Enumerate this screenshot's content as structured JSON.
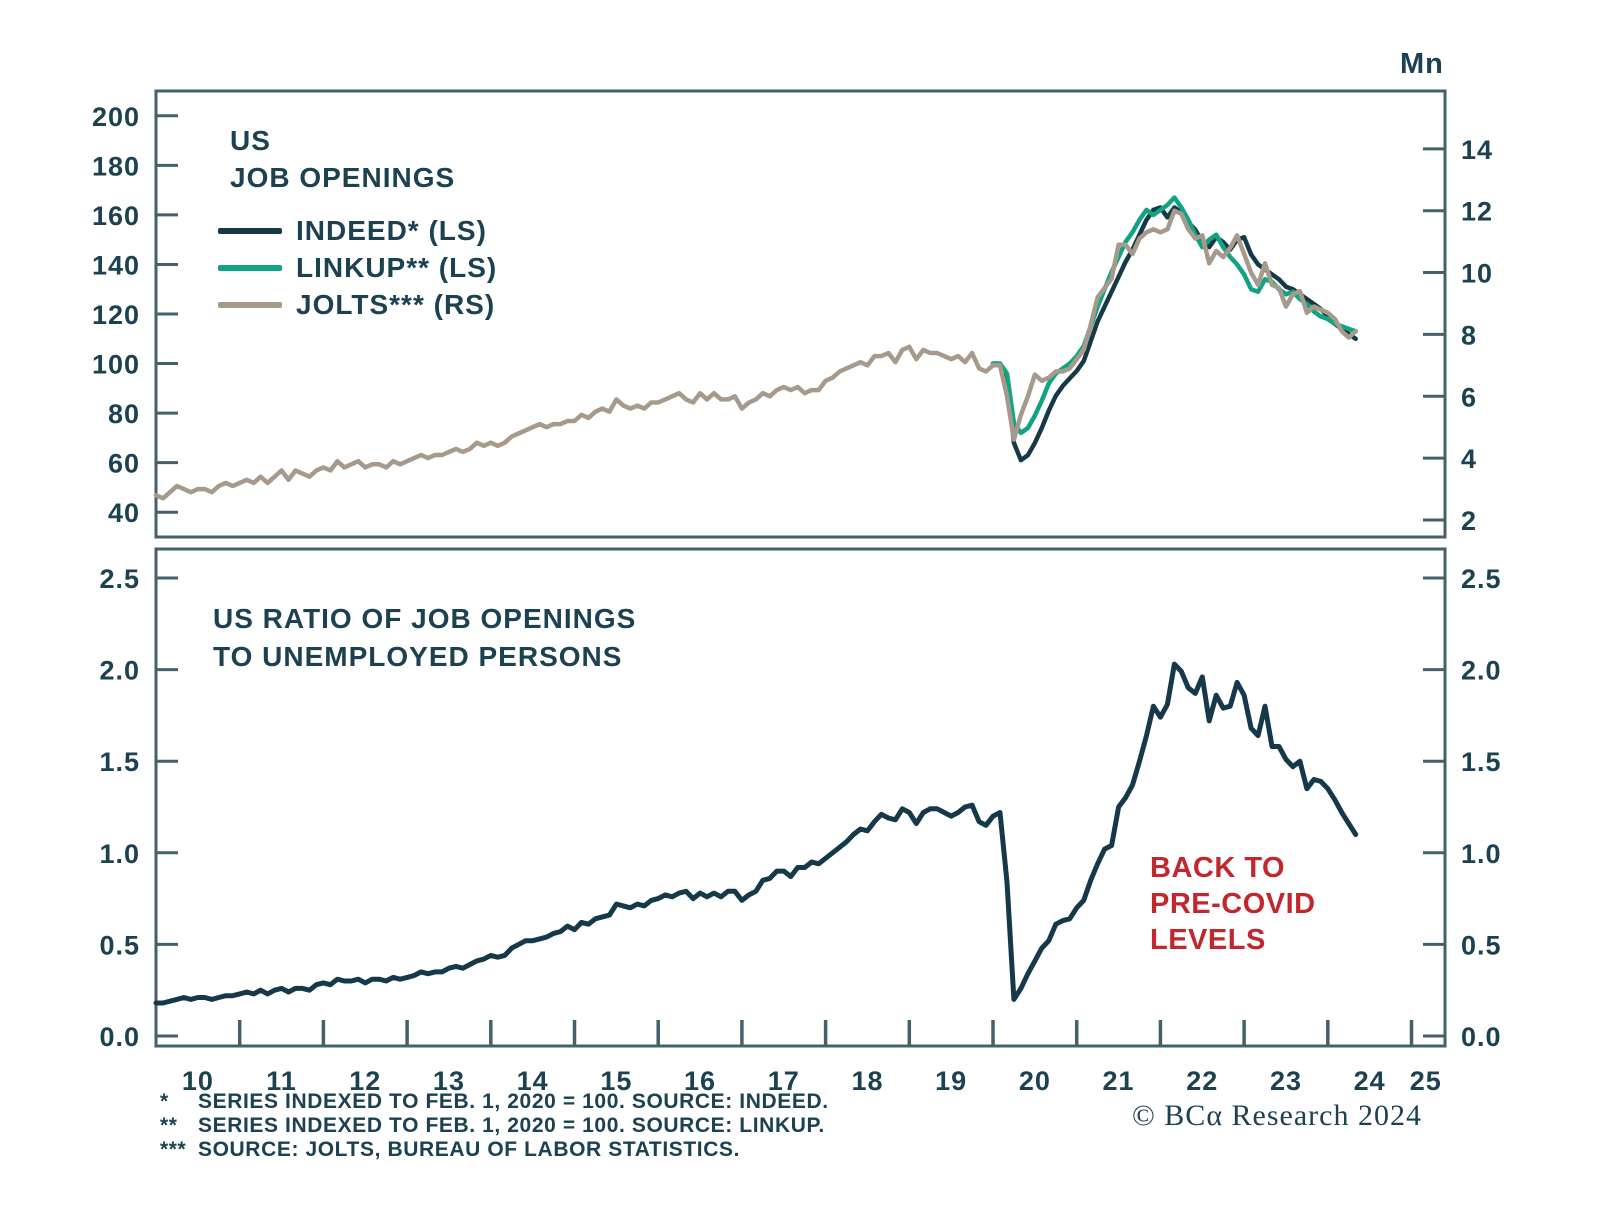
{
  "colors": {
    "text": "#1c4150",
    "axis": "#44606b",
    "line_dark": "#16394a",
    "line_green": "#10a482",
    "line_tan": "#a79a8c",
    "red": "#c2272d",
    "background": "#ffffff"
  },
  "footnotes": [
    {
      "marker": "*",
      "text": "SERIES INDEXED TO FEB. 1, 2020 = 100. SOURCE: INDEED."
    },
    {
      "marker": "**",
      "text": "SERIES INDEXED TO FEB. 1, 2020 = 100. SOURCE: LINKUP."
    },
    {
      "marker": "***",
      "text": "SOURCE: JOLTS, BUREAU OF LABOR STATISTICS."
    }
  ],
  "copyright": "© BCα Research 2024",
  "chart_data": [
    {
      "type": "line",
      "title_lines": [
        "US",
        "JOB OPENINGS"
      ],
      "legend_position": "top-left",
      "grid": false,
      "x_range": [
        2010.0,
        2025.4
      ],
      "left_axis": {
        "tick_values": [
          200,
          180,
          160,
          140,
          120,
          100,
          80,
          60,
          40
        ],
        "tick_labels": [
          "200",
          "180",
          "160",
          "140",
          "120",
          "100",
          "80",
          "60",
          "40"
        ],
        "range": [
          30,
          210
        ]
      },
      "right_axis": {
        "unit": "Mn",
        "tick_values": [
          14,
          12,
          10,
          8,
          6,
          4,
          2
        ],
        "tick_labels": [
          "14",
          "12",
          "10",
          "8",
          "6",
          "4",
          "2"
        ],
        "range": [
          1.45,
          15.87
        ]
      },
      "series": [
        {
          "id": "indeed",
          "name": "INDEED* (LS)",
          "axis": "left",
          "color_key": "line_dark",
          "stroke_width": 4.5,
          "start_year": 2020,
          "start_month": 1,
          "freq": "monthly",
          "values": [
            100,
            100,
            95,
            68,
            61,
            63,
            68,
            74,
            81,
            87,
            91,
            94,
            97,
            101,
            109,
            117,
            123,
            129,
            135,
            141,
            146,
            152,
            158,
            162,
            163,
            159,
            163,
            161,
            157,
            154,
            149,
            147,
            151,
            149,
            146,
            150,
            151,
            144,
            140,
            138,
            136,
            134,
            131,
            130,
            128,
            126,
            124,
            122,
            119,
            116,
            114,
            112,
            110
          ]
        },
        {
          "id": "linkup",
          "name": "LINKUP** (LS)",
          "axis": "left",
          "color_key": "line_green",
          "stroke_width": 4.5,
          "start_year": 2020,
          "start_month": 1,
          "freq": "monthly",
          "values": [
            100,
            100,
            96,
            76,
            72,
            74,
            79,
            85,
            92,
            96,
            98,
            100,
            103,
            107,
            115,
            123,
            130,
            137,
            143,
            149,
            153,
            158,
            162,
            160,
            162,
            164,
            167,
            163,
            158,
            152,
            147,
            150,
            152,
            147,
            143,
            140,
            136,
            130,
            129,
            134,
            133,
            130,
            128,
            129,
            126,
            124,
            121,
            119,
            118,
            116,
            115,
            114,
            113
          ]
        },
        {
          "id": "jolts",
          "name": "JOLTS*** (RS)",
          "axis": "right",
          "color_key": "line_tan",
          "stroke_width": 4.5,
          "start_year": 2010,
          "start_month": 1,
          "freq": "monthly",
          "values": [
            2.8,
            2.7,
            2.9,
            3.1,
            3.0,
            2.9,
            3.0,
            3.0,
            2.9,
            3.1,
            3.2,
            3.1,
            3.2,
            3.3,
            3.2,
            3.4,
            3.2,
            3.4,
            3.6,
            3.3,
            3.6,
            3.5,
            3.4,
            3.6,
            3.7,
            3.6,
            3.9,
            3.7,
            3.8,
            3.9,
            3.7,
            3.8,
            3.8,
            3.7,
            3.9,
            3.8,
            3.9,
            4.0,
            4.1,
            4.0,
            4.1,
            4.1,
            4.2,
            4.3,
            4.2,
            4.3,
            4.5,
            4.4,
            4.5,
            4.4,
            4.5,
            4.7,
            4.8,
            4.9,
            5.0,
            5.1,
            5.0,
            5.1,
            5.1,
            5.2,
            5.2,
            5.4,
            5.3,
            5.5,
            5.6,
            5.5,
            5.9,
            5.7,
            5.6,
            5.7,
            5.6,
            5.8,
            5.8,
            5.9,
            6.0,
            6.1,
            5.9,
            5.8,
            6.1,
            5.9,
            6.1,
            5.9,
            5.9,
            6.0,
            5.6,
            5.8,
            5.9,
            6.1,
            6.0,
            6.2,
            6.3,
            6.2,
            6.3,
            6.1,
            6.2,
            6.2,
            6.5,
            6.6,
            6.8,
            6.9,
            7.0,
            7.1,
            7.0,
            7.3,
            7.3,
            7.4,
            7.1,
            7.5,
            7.6,
            7.2,
            7.5,
            7.4,
            7.4,
            7.3,
            7.2,
            7.3,
            7.1,
            7.4,
            6.9,
            6.8,
            7.0,
            7.0,
            6.0,
            4.6,
            5.4,
            6.0,
            6.7,
            6.5,
            6.6,
            6.8,
            6.8,
            6.9,
            7.2,
            7.5,
            8.3,
            9.2,
            9.5,
            9.8,
            10.9,
            10.9,
            10.6,
            11.1,
            11.3,
            11.4,
            11.3,
            11.4,
            12.0,
            11.9,
            11.4,
            11.1,
            11.2,
            10.3,
            10.7,
            10.5,
            10.8,
            11.2,
            10.6,
            10.0,
            9.6,
            10.3,
            9.6,
            9.5,
            8.9,
            9.3,
            9.4,
            8.7,
            8.9,
            8.8,
            8.7,
            8.5,
            8.1,
            7.9,
            8.1
          ]
        }
      ]
    },
    {
      "type": "line",
      "title_lines": [
        "US RATIO OF JOB OPENINGS",
        "TO UNEMPLOYED PERSONS"
      ],
      "grid": false,
      "x_range": [
        2010.0,
        2025.4
      ],
      "annotation": {
        "lines": [
          "BACK TO",
          "PRE-COVID",
          "LEVELS"
        ],
        "color": "#c2272d"
      },
      "left_axis": {
        "tick_values": [
          2.5,
          2.0,
          1.5,
          1.0,
          0.5,
          0.0
        ],
        "tick_labels": [
          "2.5",
          "2.0",
          "1.5",
          "1.0",
          "0.5",
          "0.0"
        ],
        "range": [
          -0.0546,
          2.6583
        ]
      },
      "right_axis": {
        "tick_values": [
          2.5,
          2.0,
          1.5,
          1.0,
          0.5,
          0.0
        ],
        "tick_labels": [
          "2.5",
          "2.0",
          "1.5",
          "1.0",
          "0.5",
          "0.0"
        ],
        "range": [
          -0.0546,
          2.6583
        ]
      },
      "x_axis": {
        "tick_years": [
          2011,
          2012,
          2013,
          2014,
          2015,
          2016,
          2017,
          2018,
          2019,
          2020,
          2021,
          2022,
          2023,
          2024,
          2025
        ],
        "labels": [
          {
            "text": "10",
            "t": 2010.5
          },
          {
            "text": "11",
            "t": 2011.5
          },
          {
            "text": "12",
            "t": 2012.5
          },
          {
            "text": "13",
            "t": 2013.5
          },
          {
            "text": "14",
            "t": 2014.5
          },
          {
            "text": "15",
            "t": 2015.5
          },
          {
            "text": "16",
            "t": 2016.5
          },
          {
            "text": "17",
            "t": 2017.5
          },
          {
            "text": "18",
            "t": 2018.5
          },
          {
            "text": "19",
            "t": 2019.5
          },
          {
            "text": "20",
            "t": 2020.5
          },
          {
            "text": "21",
            "t": 2021.5
          },
          {
            "text": "22",
            "t": 2022.5
          },
          {
            "text": "23",
            "t": 2023.5
          },
          {
            "text": "24",
            "t": 2024.5
          },
          {
            "text": "25",
            "t": 2025.17
          }
        ]
      },
      "series": [
        {
          "id": "ratio",
          "name": "US RATIO OF JOB OPENINGS TO UNEMPLOYED PERSONS",
          "axis": "left",
          "color_key": "line_dark",
          "stroke_width": 5,
          "start_year": 2010,
          "start_month": 1,
          "freq": "monthly",
          "values": [
            0.18,
            0.18,
            0.19,
            0.2,
            0.21,
            0.2,
            0.21,
            0.21,
            0.2,
            0.21,
            0.22,
            0.22,
            0.23,
            0.24,
            0.23,
            0.25,
            0.23,
            0.25,
            0.26,
            0.24,
            0.26,
            0.26,
            0.25,
            0.28,
            0.29,
            0.28,
            0.31,
            0.3,
            0.3,
            0.31,
            0.29,
            0.31,
            0.31,
            0.3,
            0.32,
            0.31,
            0.32,
            0.33,
            0.35,
            0.34,
            0.35,
            0.35,
            0.37,
            0.38,
            0.37,
            0.39,
            0.41,
            0.42,
            0.44,
            0.43,
            0.44,
            0.48,
            0.5,
            0.52,
            0.52,
            0.53,
            0.54,
            0.56,
            0.57,
            0.6,
            0.58,
            0.62,
            0.61,
            0.64,
            0.65,
            0.66,
            0.72,
            0.71,
            0.7,
            0.72,
            0.71,
            0.74,
            0.75,
            0.77,
            0.76,
            0.78,
            0.79,
            0.75,
            0.78,
            0.76,
            0.78,
            0.76,
            0.79,
            0.79,
            0.74,
            0.77,
            0.79,
            0.85,
            0.86,
            0.9,
            0.9,
            0.87,
            0.92,
            0.92,
            0.95,
            0.94,
            0.97,
            1.0,
            1.03,
            1.06,
            1.1,
            1.13,
            1.12,
            1.17,
            1.21,
            1.19,
            1.18,
            1.24,
            1.22,
            1.16,
            1.22,
            1.24,
            1.24,
            1.22,
            1.2,
            1.22,
            1.25,
            1.26,
            1.17,
            1.15,
            1.2,
            1.22,
            0.84,
            0.2,
            0.26,
            0.34,
            0.41,
            0.48,
            0.52,
            0.61,
            0.63,
            0.64,
            0.7,
            0.74,
            0.85,
            0.94,
            1.02,
            1.04,
            1.25,
            1.3,
            1.37,
            1.5,
            1.64,
            1.8,
            1.74,
            1.81,
            2.03,
            1.99,
            1.9,
            1.87,
            1.96,
            1.72,
            1.86,
            1.79,
            1.8,
            1.93,
            1.86,
            1.68,
            1.64,
            1.8,
            1.58,
            1.58,
            1.51,
            1.47,
            1.5,
            1.35,
            1.4,
            1.39,
            1.35,
            1.29,
            1.22,
            1.16,
            1.1
          ]
        }
      ]
    }
  ]
}
